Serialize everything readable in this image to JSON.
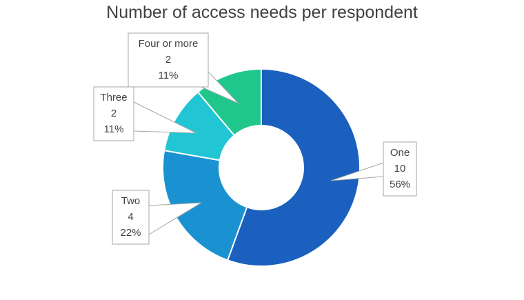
{
  "chart_data": {
    "type": "pie",
    "variant": "doughnut",
    "title": "Number of access needs per respondent",
    "categories": [
      "One",
      "Two",
      "Three",
      "Four or more"
    ],
    "values": [
      10,
      4,
      2,
      2
    ],
    "percent_labels": [
      "56%",
      "22%",
      "11%",
      "11%"
    ],
    "value_labels": [
      "10",
      "4",
      "2",
      "2"
    ],
    "colors": [
      "#1b60be",
      "#1a92d2",
      "#21c5d3",
      "#20c78c"
    ],
    "legend": "none",
    "data_labels": "callouts"
  }
}
